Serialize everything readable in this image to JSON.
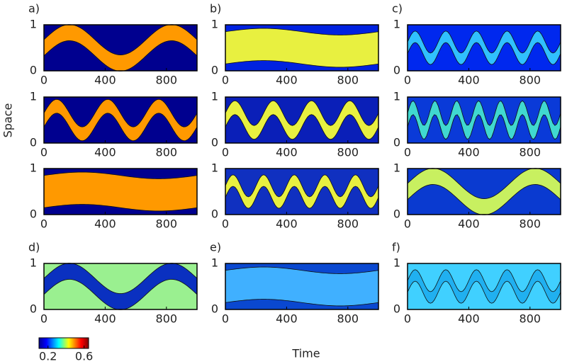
{
  "figure": {
    "y_label": "Space",
    "x_label": "Time",
    "xlim": [
      0,
      1000
    ],
    "ylim": [
      0,
      1
    ],
    "xticks": [
      0,
      400,
      800
    ],
    "yticks": [
      0,
      1
    ],
    "colorbar": {
      "lim": [
        0.1,
        0.65
      ],
      "ticks": [
        0.2,
        0.6
      ]
    },
    "panels": [
      {
        "label": "a)",
        "plots": [
          {
            "background": "#00008f",
            "fill": "#ff9900"
          },
          {
            "background": "#00008f",
            "fill": "#ff9900"
          },
          {
            "background": "#00008f",
            "fill": "#ff9900"
          }
        ]
      },
      {
        "label": "b)",
        "plots": [
          {
            "background": "#0022e0",
            "fill": "#e8f040"
          },
          {
            "background": "#0a1fb8",
            "fill": "#e8f040"
          },
          {
            "background": "#1030c0",
            "fill": "#e8f040"
          }
        ]
      },
      {
        "label": "c)",
        "plots": [
          {
            "background": "#0028ee",
            "fill": "#30c0ff"
          },
          {
            "background": "#0a3ad8",
            "fill": "#40d8d0"
          },
          {
            "background": "#0a3ad0",
            "fill": "#c8f060"
          }
        ]
      },
      {
        "label": "d)",
        "plots": [
          {
            "background": "#9af090",
            "fill": "#0a30c0"
          }
        ]
      },
      {
        "label": "e)",
        "plots": [
          {
            "background": "#0a48d0",
            "fill": "#40b0ff"
          }
        ]
      },
      {
        "label": "f)",
        "plots": [
          {
            "background": "#40d0ff",
            "fill": "#20b0f0"
          }
        ]
      }
    ]
  }
}
